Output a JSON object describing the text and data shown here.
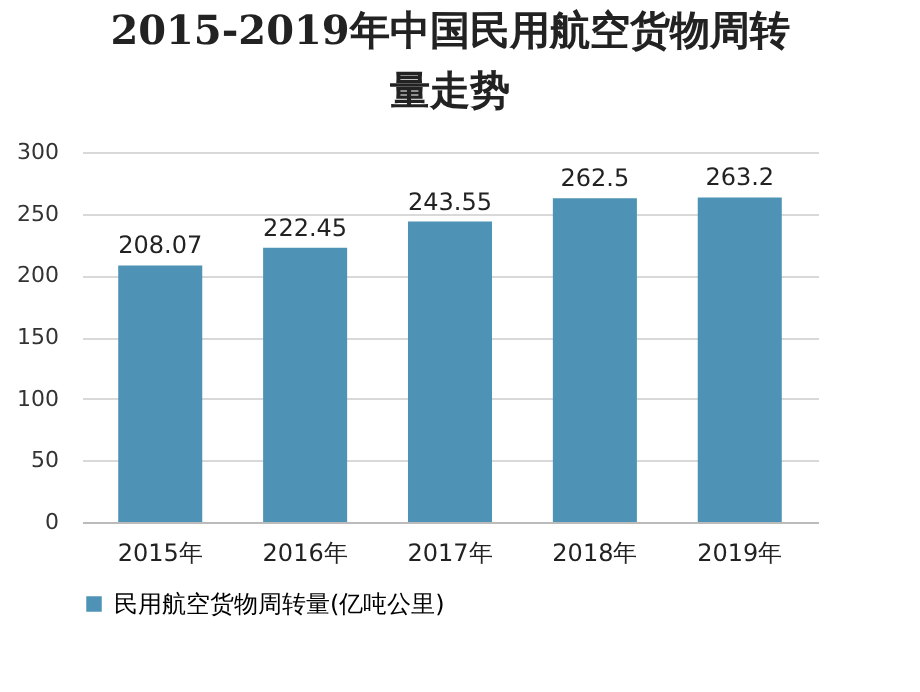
{
  "chart_data": {
    "type": "bar",
    "title": "2015-2019年中国民用航空货物周转量走势",
    "categories": [
      "2015年",
      "2016年",
      "2017年",
      "2018年",
      "2019年"
    ],
    "series": [
      {
        "name": "民用航空货物周转量(亿吨公里)",
        "color": "#4e93b5",
        "values": [
          208.07,
          222.45,
          243.55,
          262.5,
          263.2
        ]
      }
    ],
    "ylim": [
      0,
      300
    ],
    "yticks": [
      0,
      50,
      100,
      150,
      200,
      250,
      300
    ],
    "grid": "y",
    "legend": "bottom",
    "data_labels": true
  }
}
